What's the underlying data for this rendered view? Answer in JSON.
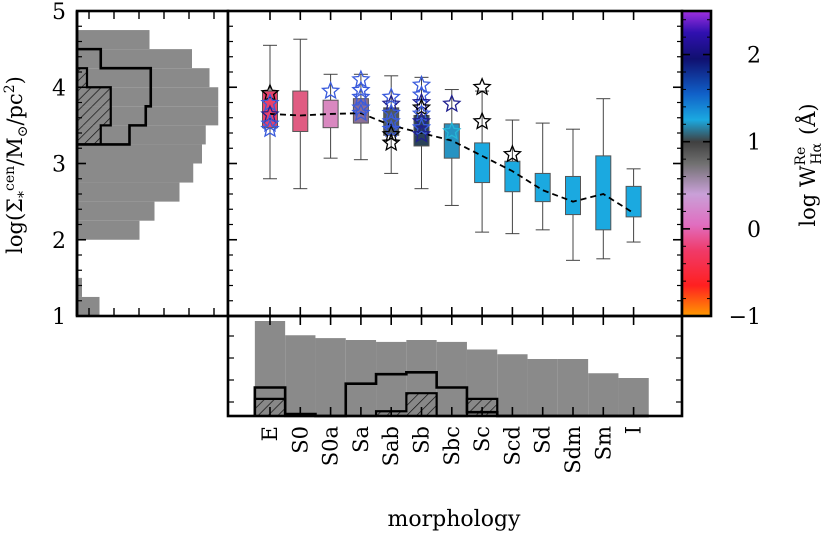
{
  "chart_data": {
    "type": "box",
    "ylabel": "log(Σ*^cen / M☉/pc²)",
    "ylabel_parts": {
      "prefix": "log(Σ",
      "sub": "*",
      "sup": "cen",
      "mid": "/M",
      "sun": "⊙",
      "tail": "/pc",
      "sq": "2",
      "close": ")"
    },
    "xlabel": "morphology",
    "ylim": [
      1,
      5
    ],
    "y_ticks": [
      1,
      2,
      3,
      4,
      5
    ],
    "categories": [
      "E",
      "S0",
      "S0a",
      "Sa",
      "Sab",
      "Sb",
      "Sbc",
      "Sc",
      "Scd",
      "Sd",
      "Sdm",
      "Sm",
      "I"
    ],
    "boxes": [
      {
        "cat": "E",
        "whislo": 2.8,
        "q1": 3.47,
        "med": 3.65,
        "q3": 3.95,
        "whishi": 4.55,
        "color": "#e8416a"
      },
      {
        "cat": "S0",
        "whislo": 2.67,
        "q1": 3.42,
        "med": 3.65,
        "q3": 3.95,
        "whishi": 4.63,
        "color": "#e05c82"
      },
      {
        "cat": "S0a",
        "whislo": 3.07,
        "q1": 3.47,
        "med": 3.65,
        "q3": 3.83,
        "whishi": 4.17,
        "color": "#d988c0"
      },
      {
        "cat": "Sa",
        "whislo": 3.05,
        "q1": 3.53,
        "med": 3.67,
        "q3": 3.85,
        "whishi": 4.17,
        "color": "#8a6f96"
      },
      {
        "cat": "Sab",
        "whislo": 2.87,
        "q1": 3.37,
        "med": 3.5,
        "q3": 3.73,
        "whishi": 4.15,
        "color": "#4e5962"
      },
      {
        "cat": "Sb",
        "whislo": 2.67,
        "q1": 3.23,
        "med": 3.43,
        "q3": 3.63,
        "whishi": 4.13,
        "color": "#2a4258"
      },
      {
        "cat": "Sbc",
        "whislo": 2.45,
        "q1": 3.07,
        "med": 3.31,
        "q3": 3.52,
        "whishi": 3.97,
        "color": "#2693c2"
      },
      {
        "cat": "Sc",
        "whislo": 2.1,
        "q1": 2.75,
        "med": 3.05,
        "q3": 3.27,
        "whishi": 3.95,
        "color": "#1ba9e0"
      },
      {
        "cat": "Scd",
        "whislo": 2.08,
        "q1": 2.63,
        "med": 2.9,
        "q3": 3.03,
        "whishi": 3.57,
        "color": "#1ba9e0"
      },
      {
        "cat": "Sd",
        "whislo": 2.13,
        "q1": 2.5,
        "med": 2.65,
        "q3": 2.87,
        "whishi": 3.53,
        "color": "#1ba9e0"
      },
      {
        "cat": "Sdm",
        "whislo": 1.73,
        "q1": 2.33,
        "med": 2.5,
        "q3": 2.83,
        "whishi": 3.45,
        "color": "#1ba9e0"
      },
      {
        "cat": "Sm",
        "whislo": 1.75,
        "q1": 2.13,
        "med": 2.63,
        "q3": 3.1,
        "whishi": 3.85,
        "color": "#1ba9e0"
      },
      {
        "cat": "I",
        "whislo": 1.97,
        "q1": 2.3,
        "med": 2.55,
        "q3": 2.7,
        "whishi": 2.93,
        "color": "#1ba9e0"
      }
    ],
    "median_trend": [
      {
        "cat": "E",
        "y": 3.65
      },
      {
        "cat": "S0",
        "y": 3.63
      },
      {
        "cat": "S0a",
        "y": 3.65
      },
      {
        "cat": "Sa",
        "y": 3.66
      },
      {
        "cat": "Sab",
        "y": 3.5
      },
      {
        "cat": "Sb",
        "y": 3.4
      },
      {
        "cat": "Sbc",
        "y": 3.3
      },
      {
        "cat": "Sc",
        "y": 3.1
      },
      {
        "cat": "Scd",
        "y": 2.9
      },
      {
        "cat": "Sd",
        "y": 2.65
      },
      {
        "cat": "Sdm",
        "y": 2.5
      },
      {
        "cat": "Sm",
        "y": 2.6
      },
      {
        "cat": "I",
        "y": 2.35
      }
    ],
    "outliers": [
      {
        "cat": "E",
        "y": 3.92,
        "c": 0
      },
      {
        "cat": "E",
        "y": 3.79,
        "c": 2
      },
      {
        "cat": "E",
        "y": 3.64,
        "c": 1
      },
      {
        "cat": "E",
        "y": 3.52,
        "c": 2
      },
      {
        "cat": "E",
        "y": 3.45,
        "c": 2
      },
      {
        "cat": "S0a",
        "y": 3.95,
        "c": 2
      },
      {
        "cat": "Sa",
        "y": 4.1,
        "c": 2
      },
      {
        "cat": "Sa",
        "y": 3.96,
        "c": 2
      },
      {
        "cat": "Sa",
        "y": 3.87,
        "c": 2
      },
      {
        "cat": "Sa",
        "y": 3.73,
        "c": 2
      },
      {
        "cat": "Sa",
        "y": 3.66,
        "c": 2
      },
      {
        "cat": "Sab",
        "y": 3.87,
        "c": 2
      },
      {
        "cat": "Sab",
        "y": 3.78,
        "c": 1
      },
      {
        "cat": "Sab",
        "y": 3.66,
        "c": 2
      },
      {
        "cat": "Sab",
        "y": 3.55,
        "c": 2
      },
      {
        "cat": "Sab",
        "y": 3.45,
        "c": 2
      },
      {
        "cat": "Sab",
        "y": 3.38,
        "c": 0
      },
      {
        "cat": "Sab",
        "y": 3.27,
        "c": 0
      },
      {
        "cat": "Sb",
        "y": 4.03,
        "c": 2
      },
      {
        "cat": "Sb",
        "y": 3.9,
        "c": 2
      },
      {
        "cat": "Sb",
        "y": 3.8,
        "c": 1
      },
      {
        "cat": "Sb",
        "y": 3.73,
        "c": 0
      },
      {
        "cat": "Sb",
        "y": 3.65,
        "c": 2
      },
      {
        "cat": "Sb",
        "y": 3.55,
        "c": 1
      },
      {
        "cat": "Sb",
        "y": 3.47,
        "c": 2
      },
      {
        "cat": "Sb",
        "y": 3.38,
        "c": 1
      },
      {
        "cat": "Sbc",
        "y": 3.78,
        "c": 1
      },
      {
        "cat": "Sbc",
        "y": 3.42,
        "c": 3
      },
      {
        "cat": "Sc",
        "y": 4.0,
        "c": 0
      },
      {
        "cat": "Sc",
        "y": 3.55,
        "c": 0
      },
      {
        "cat": "Scd",
        "y": 3.12,
        "c": 0
      }
    ],
    "outlier_colors": [
      "#000000",
      "#1f1f8f",
      "#3a5bdc",
      "#26b5d6"
    ],
    "colorbar": {
      "label": "log W_Hα^Re (Å)",
      "label_parts": {
        "prefix": "log W",
        "sup": "Re",
        "sub": "Hα",
        "unit": "(Å)"
      },
      "range": [
        -1,
        2.5
      ],
      "ticks": [
        -1,
        0,
        1,
        2
      ],
      "stops": [
        {
          "v": -1.0,
          "color": "#ff9a00"
        },
        {
          "v": -0.65,
          "color": "#ff2020"
        },
        {
          "v": -0.25,
          "color": "#f03a68"
        },
        {
          "v": 0.05,
          "color": "#e06ec0"
        },
        {
          "v": 0.4,
          "color": "#c9a0d8"
        },
        {
          "v": 0.75,
          "color": "#707070"
        },
        {
          "v": 1.0,
          "color": "#404040"
        },
        {
          "v": 1.25,
          "color": "#1ba9e0"
        },
        {
          "v": 1.55,
          "color": "#1060c8"
        },
        {
          "v": 1.95,
          "color": "#101070"
        },
        {
          "v": 2.25,
          "color": "#3010b0"
        },
        {
          "v": 2.5,
          "color": "#a030e0"
        }
      ]
    },
    "left_histogram": {
      "orientation": "horizontal",
      "bin_edges": [
        1.0,
        1.25,
        1.5,
        1.75,
        2.0,
        2.25,
        2.5,
        2.75,
        3.0,
        3.25,
        3.5,
        3.75,
        4.0,
        4.25,
        4.5,
        4.75,
        5.0
      ],
      "all": [
        0.18,
        0.04,
        0.0,
        0.0,
        0.5,
        0.62,
        0.82,
        0.93,
        1.0,
        1.03,
        1.13,
        1.13,
        1.06,
        0.92,
        0.58,
        0.0
      ],
      "outline": [
        0,
        0,
        0,
        0,
        0,
        0,
        0,
        0,
        0,
        0.42,
        0.55,
        0.59,
        0.59,
        0.19,
        0.0,
        0.0
      ],
      "hatched": [
        0,
        0,
        0,
        0,
        0,
        0,
        0,
        0,
        0,
        0.19,
        0.27,
        0.27,
        0.08,
        0.0,
        0.0,
        0.0
      ],
      "max": 1.2
    },
    "bottom_histogram": {
      "all": [
        1.0,
        0.85,
        0.82,
        0.8,
        0.78,
        0.8,
        0.78,
        0.7,
        0.65,
        0.6,
        0.6,
        0.45,
        0.4
      ],
      "outline": [
        0.3,
        0.02,
        0.0,
        0.34,
        0.44,
        0.46,
        0.3,
        0.04,
        0.0,
        0.0,
        0.0,
        0.0,
        0.0
      ],
      "hatched": [
        0.18,
        0.0,
        0.0,
        0.0,
        0.05,
        0.24,
        0.0,
        0.18,
        0.0,
        0.0,
        0.0,
        0.0,
        0.0
      ],
      "max": 1.0
    }
  }
}
